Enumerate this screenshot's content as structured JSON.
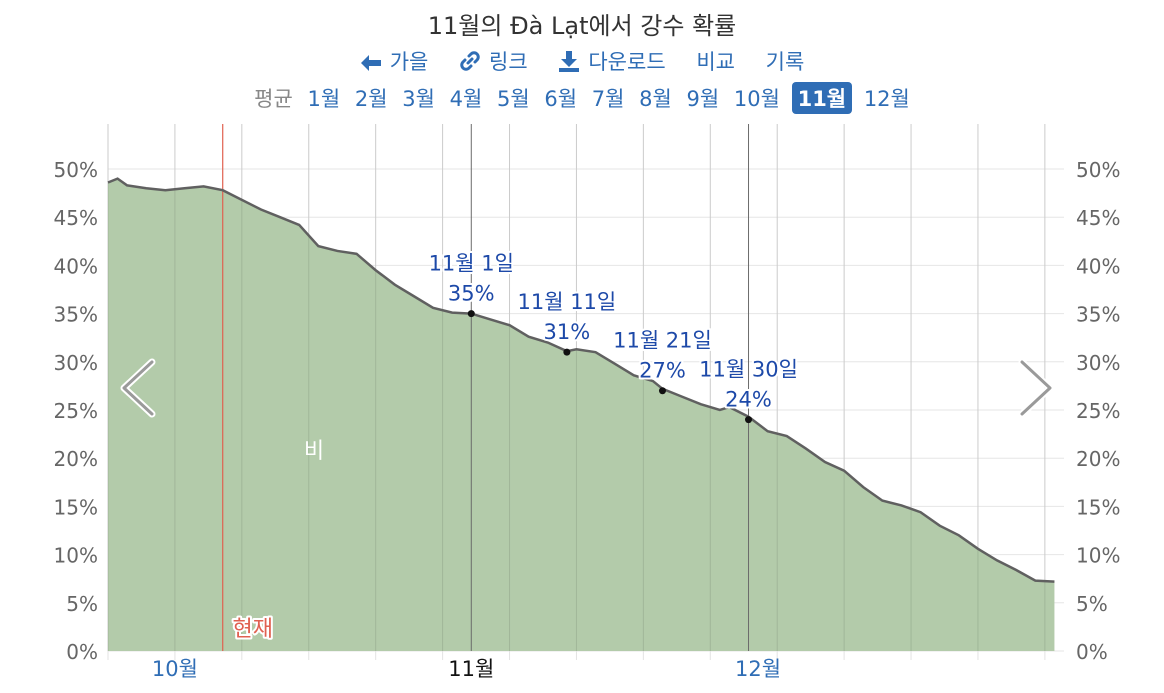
{
  "header": {
    "title": "11월의 Đà Lạt에서 강수 확률",
    "toolbar": {
      "back_label": "가을",
      "link_label": "링크",
      "download_label": "다운로드",
      "compare_label": "비교",
      "history_label": "기록"
    }
  },
  "month_nav": {
    "average_label": "평균",
    "months": [
      "1월",
      "2월",
      "3월",
      "4월",
      "5월",
      "6월",
      "7월",
      "8월",
      "9월",
      "10월",
      "11월",
      "12월"
    ],
    "active": "11월"
  },
  "chart_data": {
    "type": "area",
    "ylim": [
      0,
      50
    ],
    "yticks": [
      "0%",
      "5%",
      "10%",
      "15%",
      "20%",
      "25%",
      "30%",
      "35%",
      "40%",
      "45%",
      "50%"
    ],
    "x_start": "2023-09-24",
    "x_end": "2024-01-02",
    "x_tick_labels": [
      {
        "date": "2023-10-01",
        "label": "10월",
        "current": false
      },
      {
        "date": "2023-11-01",
        "label": "11월",
        "current": true
      },
      {
        "date": "2023-12-01",
        "label": "12월",
        "current": false
      }
    ],
    "series": [
      {
        "name": "비",
        "color": "#b3cbaa",
        "line_color": "#606060",
        "points": [
          [
            "2023-09-24",
            48.6
          ],
          [
            "2023-09-25",
            49.0
          ],
          [
            "2023-09-26",
            48.3
          ],
          [
            "2023-09-28",
            48.0
          ],
          [
            "2023-09-30",
            47.8
          ],
          [
            "2023-10-02",
            48.0
          ],
          [
            "2023-10-04",
            48.2
          ],
          [
            "2023-10-06",
            47.8
          ],
          [
            "2023-10-08",
            46.8
          ],
          [
            "2023-10-10",
            45.8
          ],
          [
            "2023-10-12",
            45.0
          ],
          [
            "2023-10-14",
            44.2
          ],
          [
            "2023-10-16",
            42.0
          ],
          [
            "2023-10-18",
            41.5
          ],
          [
            "2023-10-20",
            41.2
          ],
          [
            "2023-10-22",
            39.5
          ],
          [
            "2023-10-24",
            38.0
          ],
          [
            "2023-10-26",
            36.8
          ],
          [
            "2023-10-28",
            35.6
          ],
          [
            "2023-10-30",
            35.1
          ],
          [
            "2023-11-01",
            35.0
          ],
          [
            "2023-11-03",
            34.4
          ],
          [
            "2023-11-05",
            33.8
          ],
          [
            "2023-11-07",
            32.6
          ],
          [
            "2023-11-09",
            32.0
          ],
          [
            "2023-11-11",
            31.1
          ],
          [
            "2023-11-12",
            31.3
          ],
          [
            "2023-11-14",
            31.0
          ],
          [
            "2023-11-16",
            29.8
          ],
          [
            "2023-11-18",
            28.6
          ],
          [
            "2023-11-20",
            28.0
          ],
          [
            "2023-11-21",
            27.2
          ],
          [
            "2023-11-23",
            26.4
          ],
          [
            "2023-11-25",
            25.6
          ],
          [
            "2023-11-27",
            25.0
          ],
          [
            "2023-11-28",
            25.3
          ],
          [
            "2023-11-30",
            24.3
          ],
          [
            "2023-12-02",
            22.8
          ],
          [
            "2023-12-04",
            22.3
          ],
          [
            "2023-12-06",
            21.0
          ],
          [
            "2023-12-08",
            19.6
          ],
          [
            "2023-12-10",
            18.7
          ],
          [
            "2023-12-12",
            17.0
          ],
          [
            "2023-12-14",
            15.6
          ],
          [
            "2023-12-16",
            15.1
          ],
          [
            "2023-12-18",
            14.4
          ],
          [
            "2023-12-20",
            13.0
          ],
          [
            "2023-12-22",
            12.0
          ],
          [
            "2023-12-24",
            10.6
          ],
          [
            "2023-12-26",
            9.4
          ],
          [
            "2023-12-28",
            8.4
          ],
          [
            "2023-12-30",
            7.3
          ],
          [
            "2024-01-01",
            7.2
          ]
        ]
      }
    ],
    "series_label": "비",
    "annotations": [
      {
        "date": "2023-11-01",
        "value": 35,
        "label": "11월 1일",
        "value_label": "35%"
      },
      {
        "date": "2023-11-11",
        "value": 31,
        "label": "11월 11일",
        "value_label": "31%"
      },
      {
        "date": "2023-11-21",
        "value": 27,
        "label": "11월 21일",
        "value_label": "27%"
      },
      {
        "date": "2023-11-30",
        "value": 24,
        "label": "11월 30일",
        "value_label": "24%"
      }
    ],
    "now_marker": {
      "date": "2023-10-06",
      "label": "현재",
      "color": "#e06050"
    },
    "month_boundaries": [
      "2023-11-01",
      "2023-11-30"
    ],
    "accent_color": "#2f6db5"
  }
}
